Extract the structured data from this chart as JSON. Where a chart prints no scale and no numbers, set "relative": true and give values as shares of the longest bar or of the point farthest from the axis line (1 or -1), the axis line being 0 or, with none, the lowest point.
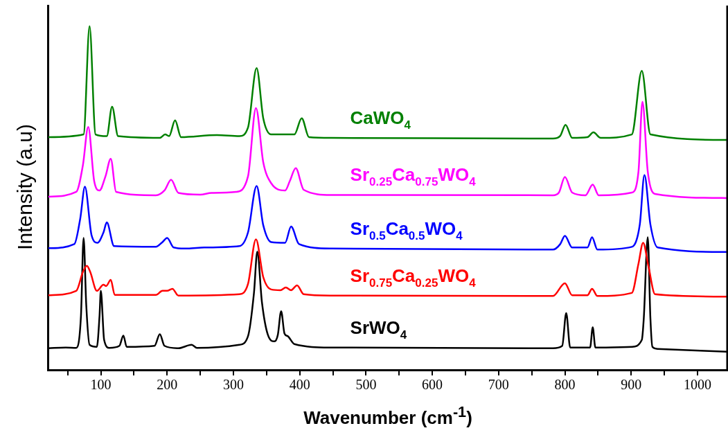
{
  "chart_data": {
    "type": "line",
    "xlabel": "Wavenumber (cm$^{-1}$)",
    "ylabel": "Intensity (a.u)",
    "relative": true,
    "legend": false,
    "grid": false,
    "marker": "none",
    "line_style": "solid",
    "xlim": [
      20,
      1045
    ],
    "xticks": [
      {
        "value": 50,
        "label": null
      },
      100,
      {
        "value": 150,
        "label": null
      },
      200,
      {
        "value": 250,
        "label": null
      },
      300,
      {
        "value": 350,
        "label": null
      },
      400,
      {
        "value": 450,
        "label": null
      },
      500,
      {
        "value": 550,
        "label": null
      },
      600,
      {
        "value": 650,
        "label": null
      },
      700,
      {
        "value": 750,
        "label": null
      },
      800,
      {
        "value": 850,
        "label": null
      },
      900,
      {
        "value": 950,
        "label": null
      },
      1000
    ],
    "series": [
      {
        "name": "CaWO$_{4}$",
        "color": "#008000",
        "x": [
          21,
          74,
          83,
          92,
          109,
          117,
          126,
          189,
          197,
          203,
          212,
          221,
          275,
          309,
          322,
          335,
          345,
          357,
          392,
          403,
          414,
          448,
          782,
          793,
          801,
          811,
          834,
          843,
          854,
          901,
          916,
          929,
          1044
        ],
        "values": [
          0.677,
          0.685,
          1.0,
          0.685,
          0.68,
          0.766,
          0.68,
          0.675,
          0.685,
          0.68,
          0.726,
          0.677,
          0.683,
          0.68,
          0.705,
          0.878,
          0.732,
          0.685,
          0.685,
          0.732,
          0.677,
          0.675,
          0.673,
          0.681,
          0.713,
          0.675,
          0.677,
          0.691,
          0.675,
          0.685,
          0.87,
          0.685,
          0.669
        ]
      },
      {
        "name": "Sr$_{0.25}$Ca$_{0.75}$WO$_{4}$",
        "color": "#ff00ff",
        "x": [
          21,
          63,
          73,
          81,
          90,
          98,
          107,
          115,
          123,
          183,
          196,
          206,
          217,
          250,
          267,
          304,
          322,
          334,
          345,
          357,
          378,
          385,
          394,
          406,
          448,
          782,
          791,
          800,
          811,
          831,
          842,
          851,
          901,
          911,
          917,
          925,
          936,
          1044
        ],
        "values": [
          0.504,
          0.518,
          0.596,
          0.707,
          0.549,
          0.522,
          0.563,
          0.614,
          0.518,
          0.508,
          0.522,
          0.553,
          0.515,
          0.51,
          0.515,
          0.518,
          0.563,
          0.762,
          0.604,
          0.543,
          0.522,
          0.549,
          0.587,
          0.524,
          0.509,
          0.508,
          0.516,
          0.561,
          0.516,
          0.508,
          0.539,
          0.508,
          0.516,
          0.577,
          0.78,
          0.577,
          0.512,
          0.5
        ]
      },
      {
        "name": "Sr$_{0.5}$Ca$_{0.5}$WO$_{4}$",
        "color": "#0000ff",
        "x": [
          21,
          60,
          69,
          76,
          86,
          95,
          104,
          109,
          120,
          183,
          193,
          200,
          210,
          231,
          256,
          309,
          322,
          335,
          345,
          357,
          378,
          387,
          399,
          448,
          782,
          793,
          800,
          811,
          834,
          841,
          849,
          901,
          913,
          920,
          929,
          940,
          1044
        ],
        "values": [
          0.354,
          0.366,
          0.441,
          0.533,
          0.392,
          0.37,
          0.4,
          0.429,
          0.36,
          0.358,
          0.372,
          0.384,
          0.356,
          0.353,
          0.356,
          0.36,
          0.4,
          0.535,
          0.421,
          0.372,
          0.37,
          0.417,
          0.366,
          0.353,
          0.35,
          0.366,
          0.39,
          0.356,
          0.356,
          0.386,
          0.35,
          0.358,
          0.423,
          0.567,
          0.423,
          0.356,
          0.343
        ]
      },
      {
        "name": "Sr$_{0.75}$Ca$_{0.25}$WO$_{4}$",
        "color": "#ff0000",
        "x": [
          21,
          63,
          73,
          79,
          84,
          94,
          104,
          108,
          115,
          121,
          183,
          193,
          200,
          208,
          217,
          309,
          322,
          334,
          345,
          357,
          371,
          379,
          387,
          396,
          406,
          448,
          782,
          800,
          811,
          834,
          841,
          849,
          901,
          911,
          918,
          926,
          936,
          1044
        ],
        "values": [
          0.217,
          0.23,
          0.285,
          0.303,
          0.285,
          0.23,
          0.248,
          0.244,
          0.262,
          0.218,
          0.218,
          0.23,
          0.23,
          0.236,
          0.216,
          0.22,
          0.25,
          0.38,
          0.27,
          0.234,
          0.232,
          0.24,
          0.232,
          0.246,
          0.22,
          0.216,
          0.215,
          0.252,
          0.217,
          0.217,
          0.236,
          0.215,
          0.224,
          0.309,
          0.37,
          0.302,
          0.22,
          0.213
        ]
      },
      {
        "name": "SrWO$_{4}$",
        "color": "#000000",
        "x": [
          21,
          47,
          63,
          70,
          74,
          78,
          83,
          94,
          98,
          100,
          105,
          113,
          128,
          134,
          139,
          181,
          189,
          196,
          217,
          237,
          245,
          309,
          322,
          331,
          336,
          343,
          352,
          362,
          367,
          372,
          377,
          382,
          392,
          448,
          782,
          796,
          802,
          808,
          838,
          842,
          846,
          901,
          916,
          919,
          925,
          929,
          932,
          940,
          1044
        ],
        "values": [
          0.063,
          0.065,
          0.064,
          0.156,
          0.384,
          0.189,
          0.073,
          0.067,
          0.156,
          0.23,
          0.087,
          0.064,
          0.07,
          0.1,
          0.067,
          0.07,
          0.104,
          0.07,
          0.063,
          0.073,
          0.064,
          0.073,
          0.098,
          0.224,
          0.344,
          0.197,
          0.102,
          0.083,
          0.102,
          0.171,
          0.106,
          0.098,
          0.075,
          0.065,
          0.063,
          0.07,
          0.165,
          0.065,
          0.065,
          0.124,
          0.065,
          0.067,
          0.087,
          0.15,
          0.386,
          0.15,
          0.067,
          0.061,
          0.053
        ]
      }
    ]
  }
}
